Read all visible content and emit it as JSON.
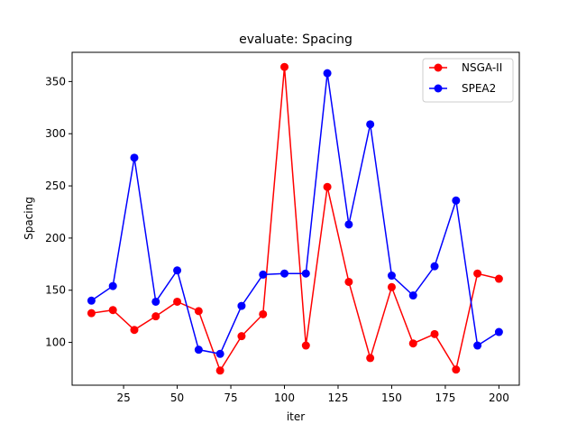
{
  "chart_data": {
    "type": "line",
    "title": "evaluate: Spacing",
    "xlabel": "iter",
    "ylabel": "Spacing",
    "xlim": [
      1,
      209.5
    ],
    "ylim": [
      59,
      378
    ],
    "xticks": [
      25,
      50,
      75,
      100,
      125,
      150,
      175,
      200
    ],
    "yticks": [
      100,
      150,
      200,
      250,
      300,
      350
    ],
    "grid": false,
    "legend": "top-right",
    "x": [
      10,
      20,
      30,
      40,
      50,
      60,
      70,
      80,
      90,
      100,
      110,
      120,
      130,
      140,
      150,
      160,
      170,
      180,
      190,
      200
    ],
    "series": [
      {
        "name": "NSGA-II",
        "color": "#ff0000",
        "values": [
          128,
          131,
          112,
          125,
          139,
          130,
          73,
          106,
          127,
          364,
          97,
          249,
          158,
          85,
          153,
          99,
          108,
          74,
          166,
          161
        ]
      },
      {
        "name": "SPEA2",
        "color": "#0000ff",
        "values": [
          140,
          154,
          277,
          139,
          169,
          93,
          89,
          135,
          165,
          166,
          166,
          358,
          213,
          309,
          164,
          145,
          173,
          236,
          97,
          110
        ]
      }
    ]
  }
}
